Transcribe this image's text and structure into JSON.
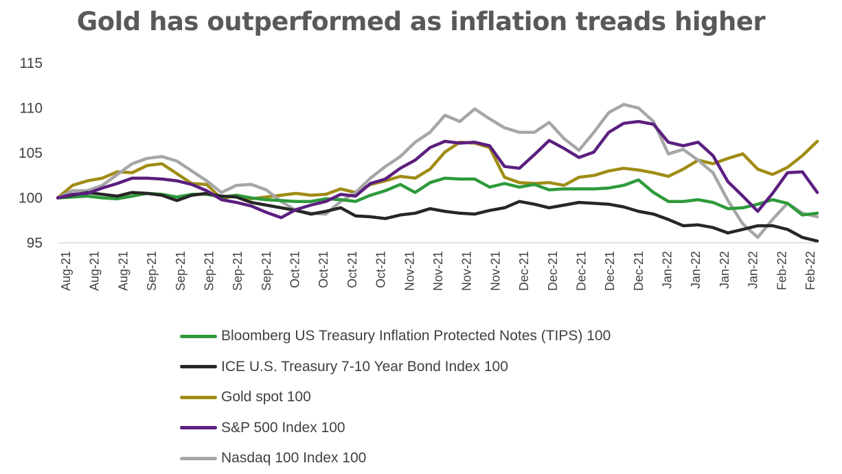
{
  "chart_data": {
    "type": "line",
    "title": "Gold has outperformed as inflation treads higher",
    "xlabel": "",
    "ylabel": "",
    "ylim": [
      95,
      115
    ],
    "yticks": [
      95,
      100,
      105,
      110,
      115
    ],
    "grid": false,
    "legend_position": "bottom",
    "x_tick_labels": [
      "Aug-21",
      "Aug-21",
      "Aug-21",
      "Sep-21",
      "Sep-21",
      "Sep-21",
      "Sep-21",
      "Sep-21",
      "Oct-21",
      "Oct-21",
      "Oct-21",
      "Oct-21",
      "Nov-21",
      "Nov-21",
      "Nov-21",
      "Nov-21",
      "Dec-21",
      "Dec-21",
      "Dec-21",
      "Dec-21",
      "Dec-21",
      "Jan-22",
      "Jan-22",
      "Jan-22",
      "Jan-22",
      "Feb-22",
      "Feb-22"
    ],
    "series": [
      {
        "name": "Bloomberg US Treasury Inflation Protected Notes (TIPS) 100",
        "color": "#2e9a3b",
        "values": [
          100,
          100.1,
          100.2,
          100,
          99.9,
          100.2,
          100.5,
          100.4,
          100.1,
          100.4,
          100.4,
          100.1,
          100.3,
          100,
          99.8,
          99.7,
          99.6,
          99.6,
          99.9,
          99.8,
          99.6,
          100.3,
          100.8,
          101.5,
          100.6,
          101.7,
          102.2,
          102.1,
          102.1,
          101.2,
          101.6,
          101.2,
          101.5,
          100.9,
          101,
          101,
          101,
          101.1,
          101.4,
          102,
          100.6,
          99.6,
          99.6,
          99.8,
          99.5,
          98.8,
          98.9,
          99.3,
          99.8,
          99.4,
          98.1,
          98.3
        ]
      },
      {
        "name": "ICE U.S. Treasury 7-10 Year Bond Index 100",
        "color": "#262626",
        "values": [
          100,
          100.3,
          100.6,
          100.4,
          100.2,
          100.6,
          100.5,
          100.3,
          99.7,
          100.3,
          100.5,
          100.2,
          100.1,
          99.5,
          99.2,
          98.9,
          98.6,
          98.2,
          98.5,
          98.9,
          98,
          97.9,
          97.7,
          98.1,
          98.3,
          98.8,
          98.5,
          98.3,
          98.2,
          98.6,
          98.9,
          99.6,
          99.3,
          98.9,
          99.2,
          99.5,
          99.4,
          99.3,
          99,
          98.5,
          98.2,
          97.6,
          96.9,
          97,
          96.7,
          96.1,
          96.5,
          96.9,
          96.9,
          96.5,
          95.6,
          95.2
        ]
      },
      {
        "name": "Gold spot 100",
        "color": "#a08c14",
        "values": [
          100,
          101.4,
          101.9,
          102.2,
          102.9,
          102.8,
          103.6,
          103.8,
          102.7,
          101.6,
          101.5,
          99.9,
          100.3,
          99.9,
          100.1,
          100.3,
          100.5,
          100.3,
          100.4,
          101,
          100.6,
          101.5,
          101.9,
          102.4,
          102.2,
          103.2,
          105.1,
          106.2,
          106.1,
          105.6,
          102.3,
          101.7,
          101.6,
          101.7,
          101.4,
          102.3,
          102.5,
          103,
          103.3,
          103.1,
          102.8,
          102.4,
          103.2,
          104.2,
          103.8,
          104.4,
          104.9,
          103.2,
          102.6,
          103.4,
          104.7,
          106.3
        ]
      },
      {
        "name": "S&P 500 Index 100",
        "color": "#5b1f7f",
        "values": [
          100,
          100.4,
          100.5,
          101.1,
          101.6,
          102.2,
          102.2,
          102.1,
          101.9,
          101.5,
          100.8,
          99.8,
          99.5,
          99.1,
          98.4,
          97.8,
          98.7,
          99.2,
          99.6,
          100.4,
          100.2,
          101.6,
          102.1,
          103.3,
          104.2,
          105.6,
          106.3,
          106.1,
          106.2,
          105.8,
          103.5,
          103.3,
          104.8,
          106.4,
          105.5,
          104.5,
          105.1,
          107.3,
          108.3,
          108.5,
          108.2,
          106.2,
          105.8,
          106.2,
          104.7,
          101.8,
          100.2,
          98.5,
          100.5,
          102.8,
          102.9,
          100.6
        ]
      },
      {
        "name": "Nasdaq 100 Index 100",
        "color": "#a6a6a6",
        "values": [
          100,
          100.8,
          100.8,
          101.4,
          102.6,
          103.8,
          104.4,
          104.6,
          104.1,
          103,
          101.9,
          100.6,
          101.4,
          101.5,
          100.9,
          99.6,
          98.6,
          98.3,
          98.2,
          99.6,
          100.6,
          102.2,
          103.5,
          104.6,
          106.2,
          107.3,
          109.2,
          108.5,
          109.9,
          108.8,
          107.8,
          107.3,
          107.3,
          108.4,
          106.6,
          105.3,
          107.3,
          109.5,
          110.4,
          110,
          108.5,
          104.9,
          105.4,
          104.2,
          102.8,
          99.7,
          97.1,
          95.6,
          97.6,
          99.4,
          98.3,
          97.9
        ]
      }
    ]
  }
}
